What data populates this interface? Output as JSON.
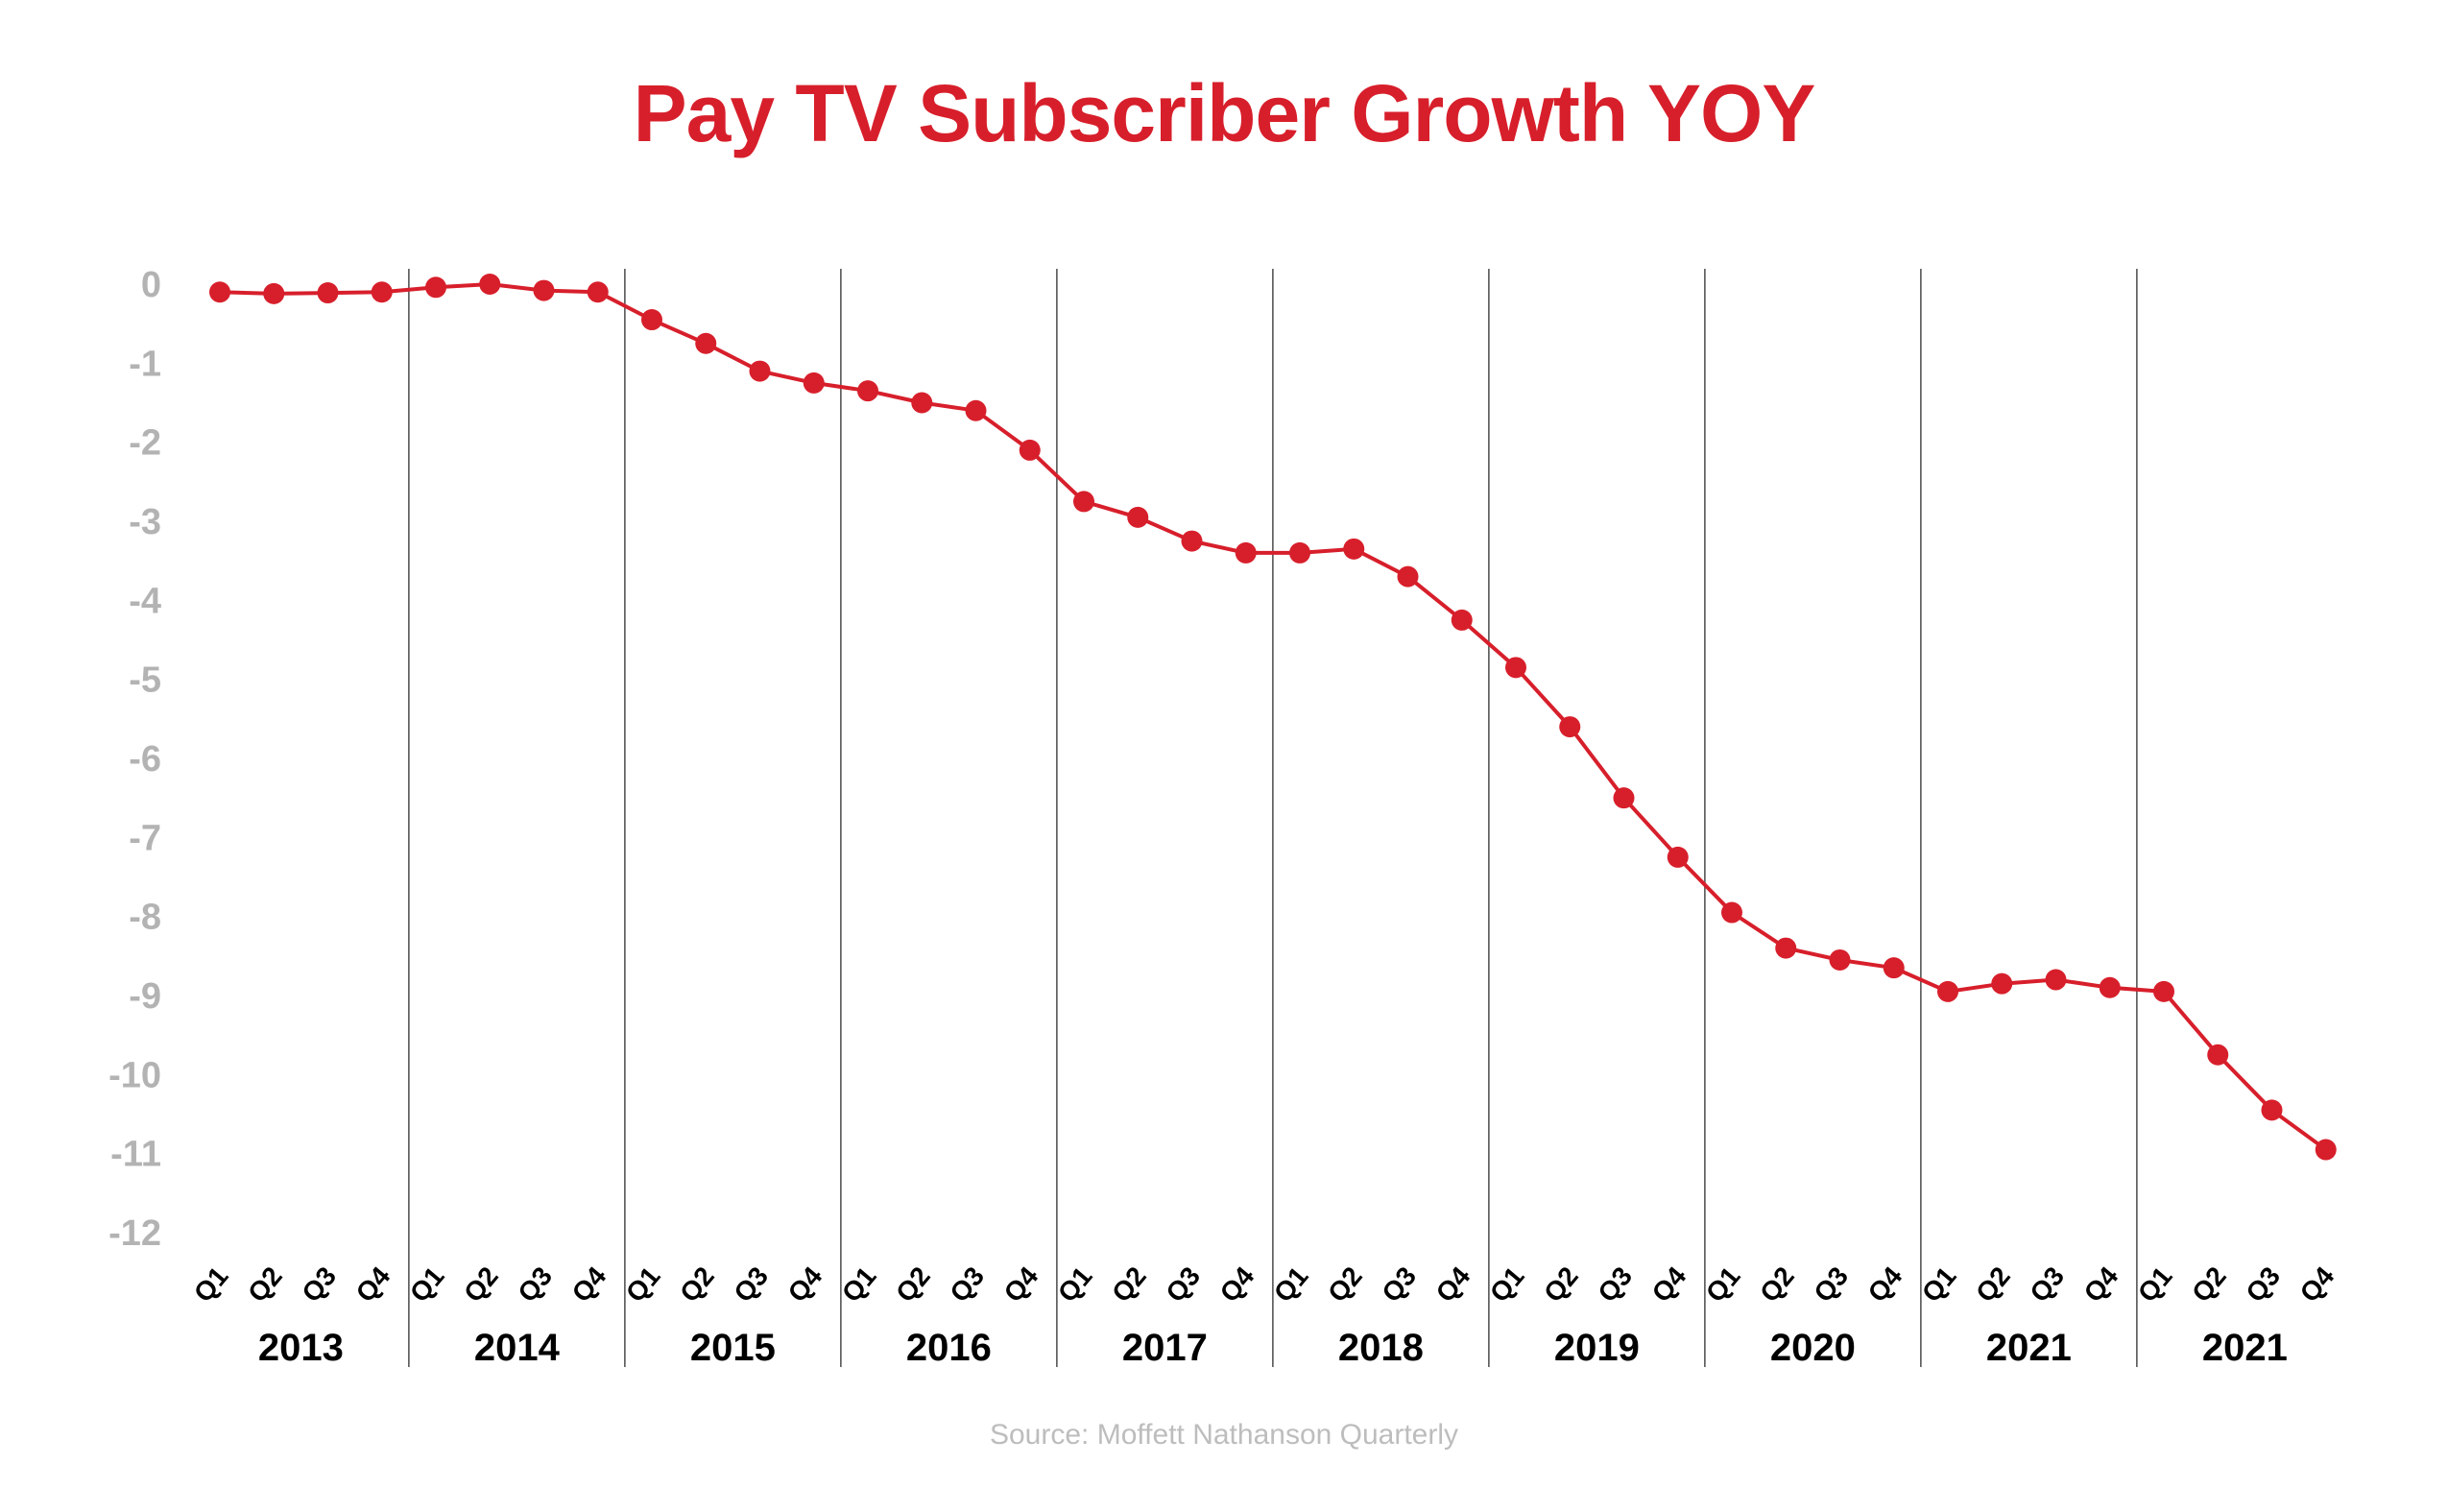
{
  "chart_data": {
    "type": "line",
    "title": "Pay TV Subscriber Growth YOY",
    "source": "Source: Moffett Nathanson Quarterly",
    "xlabel": "",
    "ylabel": "",
    "ylim": [
      -12,
      0
    ],
    "y_ticks": [
      "0",
      "-1",
      "-2",
      "-3",
      "-4",
      "-5",
      "-6",
      "-7",
      "-8",
      "-9",
      "-10",
      "-11",
      "-12"
    ],
    "y_tick_values": [
      0,
      -1,
      -2,
      -3,
      -4,
      -5,
      -6,
      -7,
      -8,
      -9,
      -10,
      -11,
      -12
    ],
    "quarters": [
      "Q1",
      "Q2",
      "Q3",
      "Q4"
    ],
    "years": [
      "2013",
      "2014",
      "2015",
      "2016",
      "2017",
      "2018",
      "2019",
      "2020",
      "2021",
      "2021"
    ],
    "grid": "vertical year separators",
    "legend": "none",
    "series": [
      {
        "values": [
          -0.1,
          -0.12,
          -0.11,
          -0.1,
          -0.04,
          0.0,
          -0.08,
          -0.1,
          -0.45,
          -0.75,
          -1.1,
          -1.25,
          -1.35,
          -1.5,
          -1.6,
          -2.1,
          -2.75,
          -2.95,
          -3.25,
          -3.4,
          -3.4,
          -3.35,
          -3.7,
          -4.25,
          -4.85,
          -5.6,
          -6.5,
          -7.25,
          -7.95,
          -8.4,
          -8.55,
          -8.65,
          -8.95,
          -8.85,
          -8.8,
          -8.9,
          -8.95,
          -9.75,
          -10.45,
          -10.95
        ]
      }
    ],
    "colors": {
      "line": "#d71f2b",
      "title": "#d71f2b",
      "y_tick": "#b3b3b3",
      "x_label": "#000000",
      "separator": "#555555",
      "source": "#bdbdbd"
    }
  }
}
